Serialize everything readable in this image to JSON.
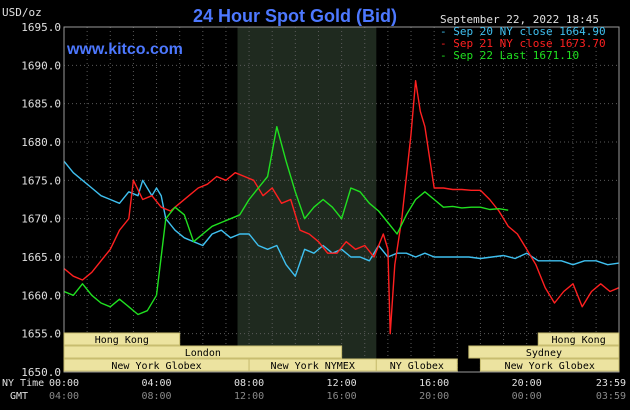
{
  "chart_data": {
    "type": "line",
    "title": "24 Hour Spot Gold (Bid)",
    "ylabel": "USD/oz",
    "watermark": "www.kitco.com",
    "date_text": "September 22, 2022 18:45",
    "ylim": [
      1650,
      1695
    ],
    "yticks": [
      "1695.0",
      "1690.0",
      "1685.0",
      "1680.0",
      "1675.0",
      "1670.0",
      "1665.0",
      "1660.0",
      "1655.0",
      "1650.0"
    ],
    "ny_time_label": "NY Time",
    "gmt_label": "GMT",
    "ny_ticks": [
      "00:00",
      "04:00",
      "08:00",
      "12:00",
      "16:00",
      "20:00",
      "23:59"
    ],
    "gmt_ticks": [
      "04:00",
      "08:00",
      "12:00",
      "16:00",
      "20:00",
      "00:00",
      "03:59"
    ],
    "shaded_region": {
      "from_hour": 7.5,
      "to_hour": 13.5
    },
    "sessions": [
      {
        "label": "Hong Kong",
        "from": 0,
        "to": 5,
        "row": 0
      },
      {
        "label": "Hong Kong",
        "from": 20.5,
        "to": 23.99,
        "row": 0
      },
      {
        "label": "London",
        "from": 0,
        "to": 12,
        "row": 1
      },
      {
        "label": "Sydney",
        "from": 17.5,
        "to": 23.99,
        "row": 1
      },
      {
        "label": "New York Globex",
        "from": 0,
        "to": 8,
        "row": 2
      },
      {
        "label": "New York NYMEX",
        "from": 8,
        "to": 13.5,
        "row": 2
      },
      {
        "label": "NY Globex",
        "from": 13.5,
        "to": 17,
        "row": 2
      },
      {
        "label": "New York Globex",
        "from": 18,
        "to": 23.99,
        "row": 2
      }
    ],
    "series": [
      {
        "name": "Sep 20 NY close 1664.90",
        "color": "#3fc0f0",
        "x": [
          0,
          0.4,
          0.8,
          1.2,
          1.6,
          2.0,
          2.4,
          2.8,
          3.2,
          3.4,
          3.6,
          3.8,
          4.0,
          4.2,
          4.4,
          4.8,
          5.2,
          5.6,
          6.0,
          6.4,
          6.8,
          7.2,
          7.6,
          8.0,
          8.4,
          8.8,
          9.2,
          9.6,
          10.0,
          10.4,
          10.8,
          11.2,
          11.6,
          12.0,
          12.4,
          12.8,
          13.2,
          13.6,
          14.0,
          14.4,
          14.8,
          15.2,
          15.6,
          16.0,
          16.5,
          17.0,
          17.5,
          18.0,
          18.5,
          19.0,
          19.5,
          20.0,
          20.5,
          21.0,
          21.5,
          22.0,
          22.5,
          23.0,
          23.5,
          23.99
        ],
        "y": [
          1677.5,
          1676.0,
          1675.0,
          1674.0,
          1673.0,
          1672.5,
          1672.0,
          1673.5,
          1673.0,
          1675.0,
          1674.0,
          1673.0,
          1674.0,
          1673.0,
          1670.0,
          1668.5,
          1667.5,
          1667.0,
          1666.5,
          1668.0,
          1668.5,
          1667.5,
          1668.0,
          1668.0,
          1666.5,
          1666.0,
          1666.5,
          1664.0,
          1662.5,
          1666.0,
          1665.5,
          1666.5,
          1665.5,
          1666.0,
          1665.0,
          1665.0,
          1664.5,
          1666.5,
          1665.0,
          1665.5,
          1665.5,
          1665.0,
          1665.5,
          1665.0,
          1665.0,
          1665.0,
          1665.0,
          1664.8,
          1665.0,
          1665.2,
          1664.8,
          1665.5,
          1664.5,
          1664.5,
          1664.5,
          1664.0,
          1664.5,
          1664.5,
          1664.0,
          1664.2
        ]
      },
      {
        "name": "Sep 21 NY close 1673.70",
        "color": "#ff2020",
        "x": [
          0,
          0.4,
          0.8,
          1.2,
          1.6,
          2.0,
          2.4,
          2.8,
          3.0,
          3.4,
          3.8,
          4.2,
          4.6,
          5.0,
          5.4,
          5.8,
          6.2,
          6.6,
          7.0,
          7.4,
          7.8,
          8.2,
          8.6,
          9.0,
          9.4,
          9.8,
          10.2,
          10.6,
          11.0,
          11.4,
          11.8,
          12.2,
          12.6,
          13.0,
          13.4,
          13.8,
          14.0,
          14.1,
          14.3,
          14.6,
          15.0,
          15.2,
          15.4,
          15.6,
          15.8,
          16.0,
          16.4,
          16.8,
          17.2,
          17.6,
          18.0,
          18.4,
          18.8,
          19.2,
          19.6,
          20.0,
          20.4,
          20.8,
          21.2,
          21.6,
          22.0,
          22.4,
          22.8,
          23.2,
          23.6,
          23.99
        ],
        "y": [
          1663.5,
          1662.5,
          1662.0,
          1663.0,
          1664.5,
          1666.0,
          1668.5,
          1670.0,
          1675.0,
          1672.5,
          1673.0,
          1671.5,
          1671.0,
          1672.0,
          1673.0,
          1674.0,
          1674.5,
          1675.5,
          1675.0,
          1676.0,
          1675.5,
          1675.0,
          1673.0,
          1674.0,
          1672.0,
          1672.5,
          1668.5,
          1668.0,
          1667.0,
          1665.5,
          1665.5,
          1667.0,
          1666.0,
          1666.5,
          1665.0,
          1668.0,
          1666.0,
          1655.0,
          1664.0,
          1670.0,
          1681.0,
          1688.0,
          1684.0,
          1682.0,
          1678.0,
          1674.0,
          1674.0,
          1673.8,
          1673.8,
          1673.7,
          1673.7,
          1672.5,
          1671.0,
          1669.0,
          1668.0,
          1666.0,
          1664.0,
          1661.0,
          1659.0,
          1660.5,
          1661.5,
          1658.5,
          1660.5,
          1661.5,
          1660.5,
          1661.0
        ]
      },
      {
        "name": "Sep 22 Last 1671.10",
        "color": "#20e020",
        "x": [
          0,
          0.4,
          0.8,
          1.2,
          1.6,
          2.0,
          2.4,
          2.8,
          3.2,
          3.6,
          4.0,
          4.4,
          4.8,
          5.2,
          5.6,
          6.0,
          6.4,
          6.8,
          7.2,
          7.6,
          8.0,
          8.4,
          8.8,
          9.2,
          9.6,
          10.0,
          10.4,
          10.8,
          11.2,
          11.6,
          12.0,
          12.4,
          12.8,
          13.2,
          13.6,
          14.0,
          14.4,
          14.8,
          15.2,
          15.6,
          16.0,
          16.4,
          16.8,
          17.2,
          17.6,
          18.0,
          18.4,
          18.8,
          19.2
        ],
        "y": [
          1660.5,
          1660.0,
          1661.5,
          1660.0,
          1659.0,
          1658.5,
          1659.5,
          1658.5,
          1657.5,
          1658.0,
          1660.0,
          1670.0,
          1671.5,
          1670.5,
          1667.0,
          1668.0,
          1669.0,
          1669.5,
          1670.0,
          1670.5,
          1672.5,
          1674.0,
          1675.5,
          1682.0,
          1677.5,
          1673.5,
          1670.0,
          1671.5,
          1672.5,
          1671.5,
          1670.0,
          1674.0,
          1673.5,
          1672.0,
          1671.0,
          1669.5,
          1668.0,
          1670.5,
          1672.5,
          1673.5,
          1672.5,
          1671.5,
          1671.6,
          1671.4,
          1671.5,
          1671.5,
          1671.2,
          1671.3,
          1671.1
        ]
      }
    ]
  }
}
